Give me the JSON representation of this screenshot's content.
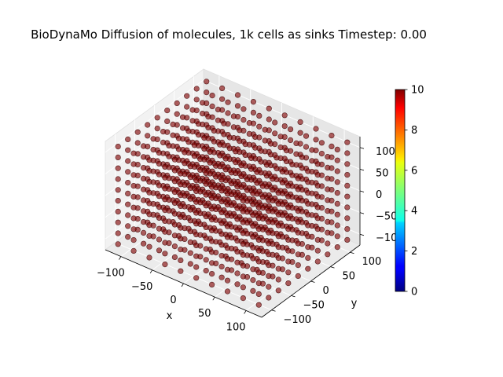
{
  "chart_data": {
    "type": "scatter",
    "title": "BioDynaMo Diffusion of molecules, 1k cells as sinks Timestep: 0.00",
    "xlabel": "x",
    "ylabel": "y",
    "zlabel": "",
    "xlim": [
      -125,
      125
    ],
    "ylim": [
      -125,
      125
    ],
    "zlim": [
      -125,
      125
    ],
    "xticks": [
      -100,
      -50,
      0,
      50,
      100
    ],
    "yticks": [
      -100,
      -50,
      0,
      50,
      100
    ],
    "zticks": [
      -100,
      -50,
      0,
      50,
      100
    ],
    "xtick_labels": [
      "−100",
      "−50",
      "0",
      "50",
      "100"
    ],
    "ytick_labels": [
      "−100",
      "−50",
      "0",
      "50",
      "100"
    ],
    "ztick_labels": [
      "−100",
      "−50",
      "0",
      "50",
      "100"
    ],
    "grid": true,
    "points": {
      "grid_min": -112.5,
      "grid_step": 25,
      "grid_count_per_axis": 10,
      "total_points": 1000,
      "value": 10,
      "color": "#800000"
    },
    "colorbar": {
      "colormap": "jet",
      "min": 0,
      "max": 10,
      "ticks": [
        0,
        2,
        4,
        6,
        8,
        10
      ],
      "tick_labels": [
        "0",
        "2",
        "4",
        "6",
        "8",
        "10"
      ]
    }
  }
}
